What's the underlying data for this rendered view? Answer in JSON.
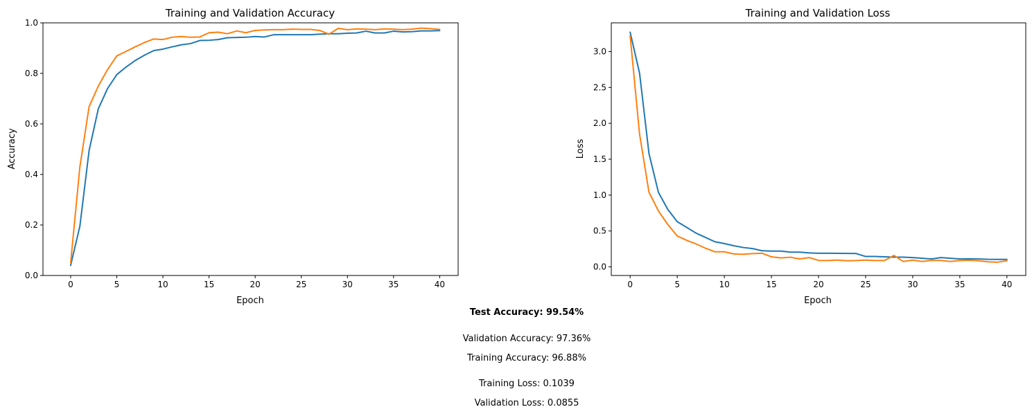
{
  "chart_data": [
    {
      "type": "line",
      "title": "Training and Validation Accuracy",
      "xlabel": "Epoch",
      "ylabel": "Accuracy",
      "xlim": [
        -3,
        42
      ],
      "ylim": [
        0.0,
        1.0
      ],
      "xticks": [
        "0",
        "5",
        "10",
        "15",
        "20",
        "25",
        "30",
        "35",
        "40"
      ],
      "yticks": [
        "0.0",
        "0.2",
        "0.4",
        "0.6",
        "0.8",
        "1.0"
      ],
      "grid": false,
      "x": [
        0,
        1,
        2,
        3,
        4,
        5,
        6,
        7,
        8,
        9,
        10,
        11,
        12,
        13,
        14,
        15,
        16,
        17,
        18,
        19,
        20,
        21,
        22,
        23,
        24,
        25,
        26,
        27,
        28,
        29,
        30,
        31,
        32,
        33,
        34,
        35,
        36,
        37,
        38,
        39,
        40
      ],
      "series": [
        {
          "color": "#1f77b4",
          "values": [
            0.04,
            0.195,
            0.495,
            0.66,
            0.74,
            0.795,
            0.825,
            0.851,
            0.872,
            0.89,
            0.896,
            0.905,
            0.913,
            0.918,
            0.93,
            0.931,
            0.934,
            0.941,
            0.942,
            0.943,
            0.946,
            0.944,
            0.953,
            0.953,
            0.953,
            0.953,
            0.953,
            0.955,
            0.957,
            0.957,
            0.959,
            0.96,
            0.967,
            0.96,
            0.96,
            0.967,
            0.964,
            0.965,
            0.968,
            0.968,
            0.969
          ]
        },
        {
          "color": "#ff7f0e",
          "values": [
            0.05,
            0.43,
            0.668,
            0.75,
            0.815,
            0.869,
            0.887,
            0.905,
            0.922,
            0.936,
            0.934,
            0.943,
            0.946,
            0.943,
            0.944,
            0.961,
            0.963,
            0.957,
            0.968,
            0.961,
            0.97,
            0.972,
            0.973,
            0.973,
            0.975,
            0.974,
            0.974,
            0.97,
            0.955,
            0.978,
            0.973,
            0.976,
            0.975,
            0.973,
            0.976,
            0.975,
            0.973,
            0.975,
            0.979,
            0.977,
            0.974
          ]
        }
      ]
    },
    {
      "type": "line",
      "title": "Training and Validation Loss",
      "xlabel": "Epoch",
      "ylabel": "Loss",
      "xlim": [
        -2,
        42
      ],
      "ylim": [
        -0.12,
        3.4
      ],
      "xticks": [
        "0",
        "5",
        "10",
        "15",
        "20",
        "25",
        "30",
        "35",
        "40"
      ],
      "yticks": [
        "0.0",
        "0.5",
        "1.0",
        "1.5",
        "2.0",
        "2.5",
        "3.0"
      ],
      "grid": false,
      "x": [
        0,
        1,
        2,
        3,
        4,
        5,
        6,
        7,
        8,
        9,
        10,
        11,
        12,
        13,
        14,
        15,
        16,
        17,
        18,
        19,
        20,
        21,
        22,
        23,
        24,
        25,
        26,
        27,
        28,
        29,
        30,
        31,
        32,
        33,
        34,
        35,
        36,
        37,
        38,
        39,
        40
      ],
      "series": [
        {
          "color": "#1f77b4",
          "values": [
            3.27,
            2.7,
            1.58,
            1.04,
            0.8,
            0.63,
            0.55,
            0.47,
            0.41,
            0.35,
            0.325,
            0.295,
            0.27,
            0.255,
            0.225,
            0.22,
            0.22,
            0.205,
            0.205,
            0.195,
            0.19,
            0.19,
            0.188,
            0.187,
            0.186,
            0.145,
            0.145,
            0.14,
            0.135,
            0.135,
            0.13,
            0.12,
            0.11,
            0.13,
            0.12,
            0.11,
            0.112,
            0.11,
            0.105,
            0.104,
            0.104
          ]
        },
        {
          "color": "#ff7f0e",
          "values": [
            3.22,
            1.85,
            1.04,
            0.78,
            0.59,
            0.43,
            0.37,
            0.32,
            0.26,
            0.21,
            0.21,
            0.18,
            0.175,
            0.185,
            0.19,
            0.14,
            0.125,
            0.135,
            0.11,
            0.13,
            0.09,
            0.088,
            0.095,
            0.085,
            0.088,
            0.095,
            0.088,
            0.088,
            0.16,
            0.075,
            0.095,
            0.075,
            0.09,
            0.09,
            0.075,
            0.088,
            0.092,
            0.085,
            0.07,
            0.065,
            0.086
          ]
        }
      ]
    }
  ],
  "notes": {
    "test_accuracy": "Test Accuracy: 99.54%",
    "validation_accuracy": "Validation Accuracy: 97.36%",
    "training_accuracy": "Training Accuracy: 96.88%",
    "training_loss": "Training Loss: 0.1039",
    "validation_loss": "Validation Loss: 0.0855"
  }
}
